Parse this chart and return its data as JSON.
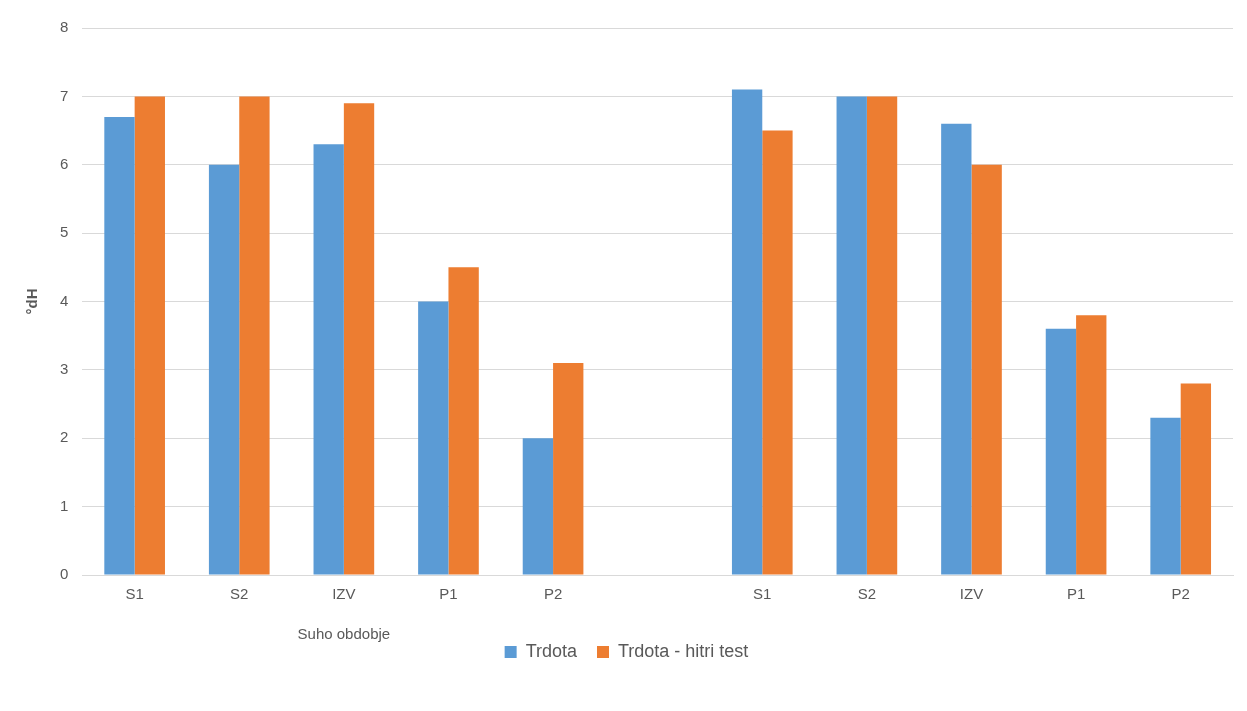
{
  "chart_data": {
    "type": "bar",
    "ylabel": "°dH",
    "categories": [
      "S1",
      "S2",
      "IZV",
      "P1",
      "P2",
      null,
      "S1",
      "S2",
      "IZV",
      "P1",
      "P2"
    ],
    "series": [
      {
        "name": "Trdota",
        "color": "#5b9bd5",
        "values": [
          6.7,
          6.0,
          6.3,
          4.0,
          2.0,
          null,
          7.1,
          7.0,
          6.6,
          3.6,
          2.3
        ]
      },
      {
        "name": "Trdota - hitri test",
        "color": "#ed7d31",
        "values": [
          7.0,
          7.0,
          6.9,
          4.5,
          3.1,
          null,
          6.5,
          7.0,
          6.0,
          3.8,
          2.8
        ]
      }
    ],
    "ylim": [
      0,
      8
    ],
    "yticks": [
      0,
      1,
      2,
      3,
      4,
      5,
      6,
      7,
      8
    ],
    "grid": "y",
    "legend": "bottom",
    "annotations": [
      "Suho obdobje"
    ]
  }
}
